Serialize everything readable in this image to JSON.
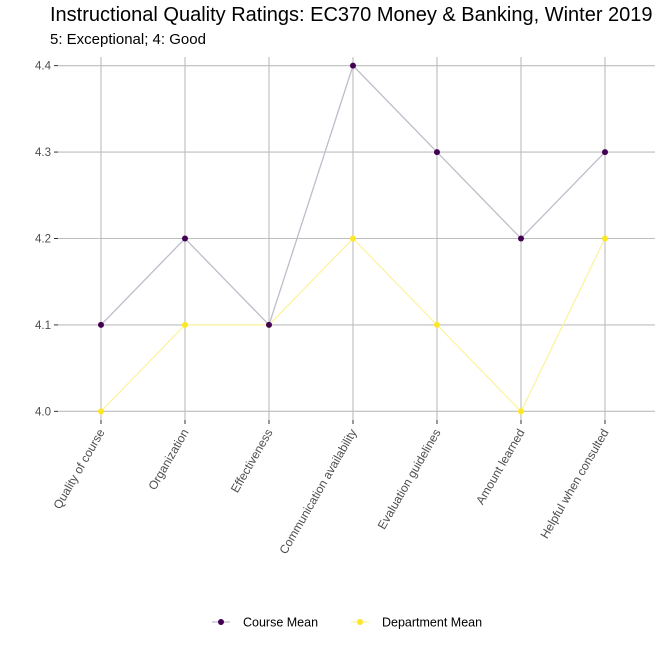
{
  "chart_data": {
    "type": "line",
    "title": "Instructional Quality Ratings: EC370 Money & Banking, Winter 2019",
    "subtitle": "5: Exceptional; 4: Good",
    "xlabel": "",
    "ylabel": "",
    "categories": [
      "Quality of course",
      "Organization",
      "Effectiveness",
      "Communication availability",
      "Evaluation guidelines",
      "Amount learned",
      "Helpful when consulted"
    ],
    "series": [
      {
        "name": "Course Mean",
        "values": [
          4.1,
          4.2,
          4.1,
          4.4,
          4.3,
          4.2,
          4.3
        ],
        "color": "#440154",
        "line_color": "#bdbdc9"
      },
      {
        "name": "Department Mean",
        "values": [
          4.0,
          4.1,
          4.1,
          4.2,
          4.1,
          4.0,
          4.2
        ],
        "color": "#fde725",
        "line_color": "#fdf3a3"
      }
    ],
    "ylim": [
      3.99,
      4.41
    ],
    "yticks": [
      4.0,
      4.1,
      4.2,
      4.3,
      4.4
    ],
    "grid": true,
    "legend_position": "bottom"
  }
}
